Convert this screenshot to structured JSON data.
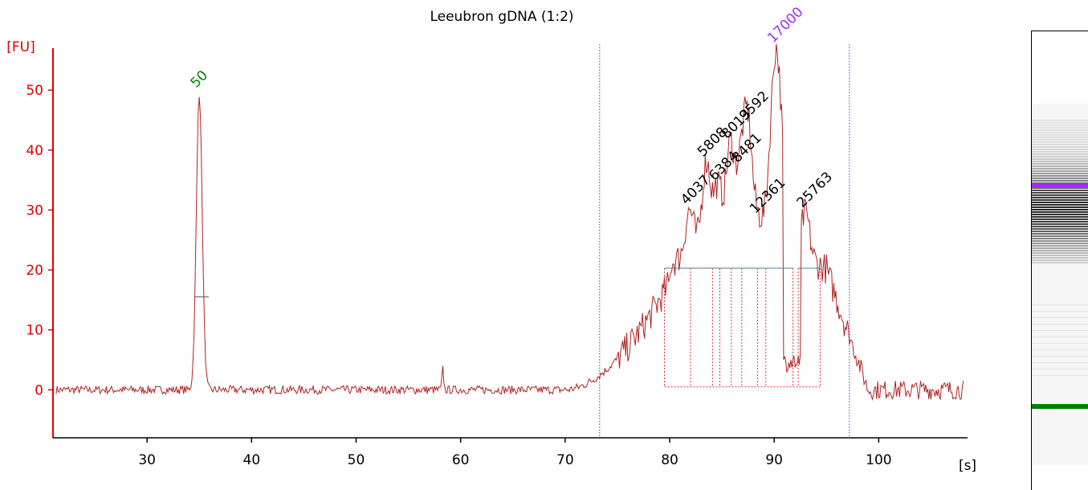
{
  "chart_data": {
    "type": "line",
    "title": "Leeubron gDNA (1:2)",
    "ylabel": "[FU]",
    "xlabel": "[s]",
    "xlim": [
      21,
      108.5
    ],
    "ylim": [
      -8,
      57
    ],
    "x_ticks": [
      30,
      40,
      50,
      60,
      70,
      80,
      90,
      100
    ],
    "y_ticks": [
      0,
      10,
      20,
      30,
      40,
      50
    ],
    "grid": false,
    "colors": {
      "trace": "#b22222",
      "axis": "#e00000",
      "marker_peak": "#008000",
      "upper_marker": "#9b30ff",
      "region_line": "#4040c0",
      "baseline": "#4a7a8a"
    },
    "region_bounds_s": [
      73.3,
      97.2
    ],
    "baseline_fu": 20.3,
    "peaks": [
      {
        "label": "50",
        "x": 35.0,
        "y": 49.5,
        "color": "#008000"
      },
      {
        "label": "17000",
        "x": 90.2,
        "y": 57.0,
        "color": "#9b30ff"
      },
      {
        "label": "4037",
        "x": 81.9,
        "y": 30.0,
        "color": "#000000"
      },
      {
        "label": "5808",
        "x": 83.5,
        "y": 38.0,
        "color": "#000000"
      },
      {
        "label": "6384",
        "x": 84.6,
        "y": 34.0,
        "color": "#000000"
      },
      {
        "label": "8013",
        "x": 85.8,
        "y": 41.0,
        "color": "#000000"
      },
      {
        "label": "8481",
        "x": 86.8,
        "y": 37.0,
        "color": "#000000"
      },
      {
        "label": "9592",
        "x": 87.5,
        "y": 44.0,
        "color": "#000000"
      },
      {
        "label": "12361",
        "x": 88.5,
        "y": 28.5,
        "color": "#000000"
      },
      {
        "label": "25763",
        "x": 93.0,
        "y": 29.5,
        "color": "#000000"
      }
    ],
    "segment_boundaries_s": [
      79.5,
      82.0,
      84.1,
      84.8,
      85.9,
      86.9,
      88.4,
      89.2,
      91.8,
      92.3,
      94.4
    ]
  },
  "gel": {
    "upper_marker_color": "#9b30ff",
    "lower_marker_color": "#008000",
    "upper_marker_level": 0.33,
    "lower_marker_level": 0.83
  }
}
